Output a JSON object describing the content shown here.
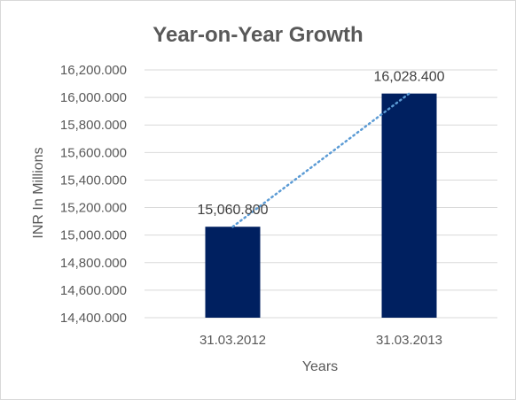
{
  "chart_data": {
    "type": "bar",
    "title": "Year-on-Year Growth",
    "xlabel": "Years",
    "ylabel": "INR In Millions",
    "categories": [
      "31.03.2012",
      "31.03.2013"
    ],
    "values": [
      15060.8,
      16028.4
    ],
    "data_labels": [
      "15,060.800",
      "16,028.400"
    ],
    "ylim": [
      14400,
      16200
    ],
    "ytick_values": [
      14400,
      14600,
      14800,
      15000,
      15200,
      15400,
      15600,
      15800,
      16000,
      16200
    ],
    "ytick_labels": [
      "14,400.000",
      "14,600.000",
      "14,800.000",
      "15,000.000",
      "15,200.000",
      "15,400.000",
      "15,600.000",
      "15,800.000",
      "16,000.000",
      "16,200.000"
    ],
    "bar_color": "#002060",
    "trendline": {
      "type": "linear",
      "style": "dotted",
      "color": "#5b9bd5"
    },
    "grid": true,
    "legend": "none"
  }
}
